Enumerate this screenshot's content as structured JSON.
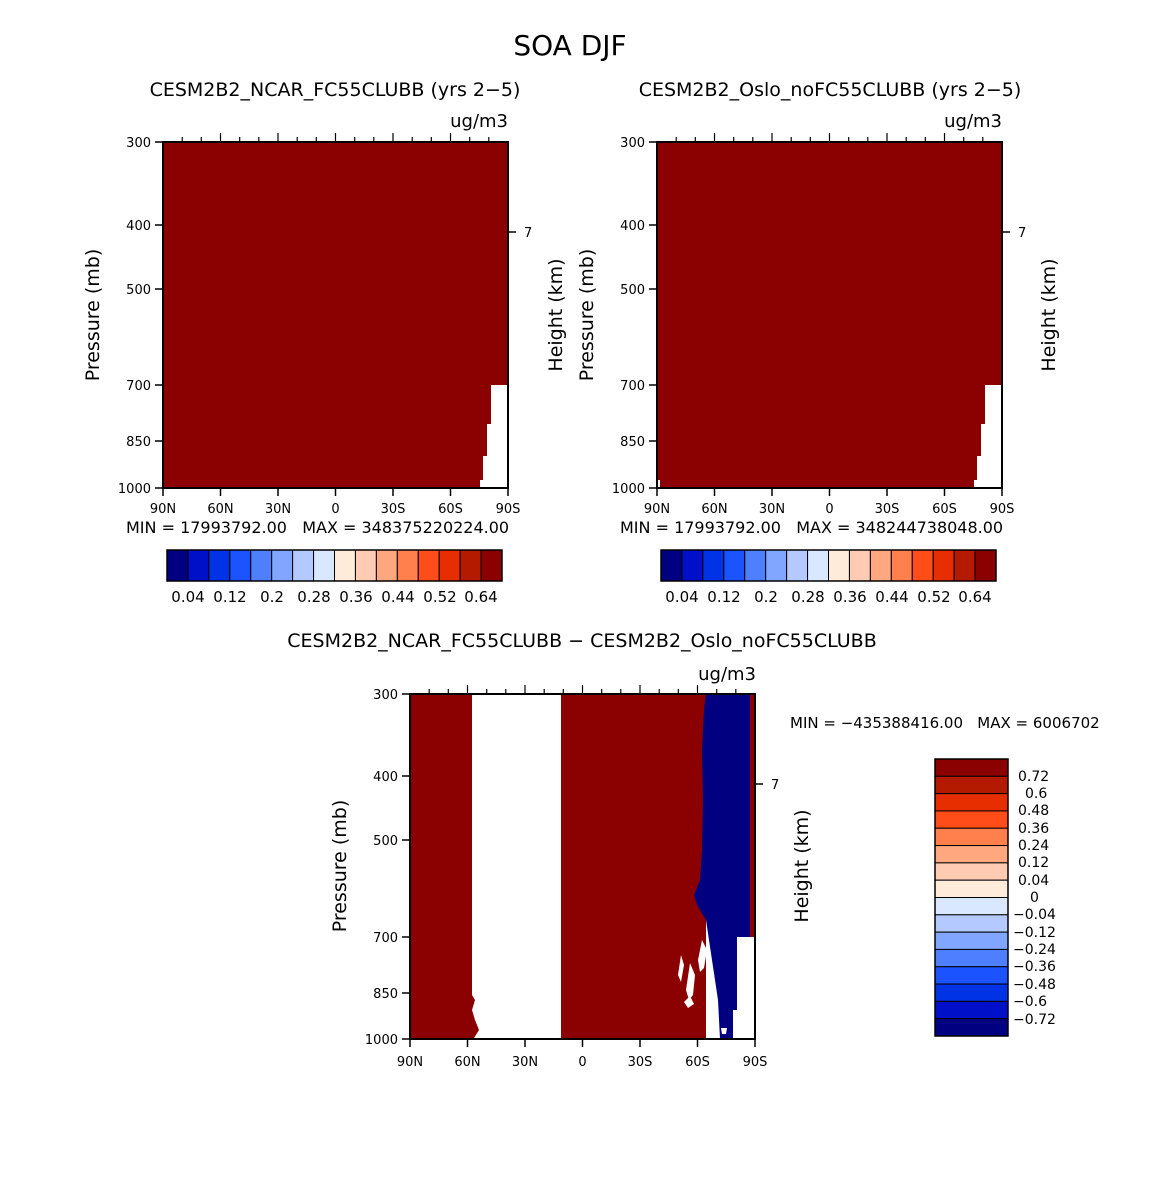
{
  "figure": {
    "title": "SOA DJF"
  },
  "chart_data": [
    {
      "id": "top-left",
      "type": "heatmap",
      "title": "CESM2B2_NCAR_FC55CLUBB (yrs 2−5)",
      "units": "ug/m3",
      "ylabel": "Pressure (mb)",
      "ylabel_right": "Height (km)",
      "xticks": [
        "90N",
        "60N",
        "30N",
        "0",
        "30S",
        "60S",
        "90S"
      ],
      "yticks": [
        300,
        400,
        500,
        700,
        850,
        1000
      ],
      "right_ticks": [
        "7"
      ],
      "stats": "MIN = 17993792.00   MAX = 348375220224.00",
      "colorbar_labels": [
        "0.04",
        "0.12",
        "0.2",
        "0.28",
        "0.36",
        "0.44",
        "0.52",
        "0.64"
      ],
      "fill": "saturated (dark red) everywhere except missing data below 700 mb near 90S"
    },
    {
      "id": "top-right",
      "type": "heatmap",
      "title": "CESM2B2_Oslo_noFC55CLUBB (yrs 2−5)",
      "units": "ug/m3",
      "ylabel": "Pressure (mb)",
      "ylabel_right": "Height (km)",
      "xticks": [
        "90N",
        "60N",
        "30N",
        "0",
        "30S",
        "60S",
        "90S"
      ],
      "yticks": [
        300,
        400,
        500,
        700,
        850,
        1000
      ],
      "right_ticks": [
        "7"
      ],
      "stats": "MIN = 17993792.00   MAX = 348244738048.00",
      "colorbar_labels": [
        "0.04",
        "0.12",
        "0.2",
        "0.28",
        "0.36",
        "0.44",
        "0.52",
        "0.64"
      ],
      "fill": "saturated (dark red) everywhere except missing data below 700 mb near 90S"
    },
    {
      "id": "bottom",
      "type": "heatmap",
      "title": "CESM2B2_NCAR_FC55CLUBB − CESM2B2_Oslo_noFC55CLUBB",
      "units": "ug/m3",
      "ylabel": "Pressure (mb)",
      "ylabel_right": "Height (km)",
      "xticks": [
        "90N",
        "60N",
        "30N",
        "0",
        "30S",
        "60S",
        "90S"
      ],
      "yticks": [
        300,
        400,
        500,
        700,
        850,
        1000
      ],
      "right_ticks": [
        "7"
      ],
      "stats": "MIN = −435388416.00   MAX = 6006702",
      "colorbar_labels": [
        "0.72",
        "0.6",
        "0.48",
        "0.36",
        "0.24",
        "0.12",
        "0.04",
        "0",
        "−0.04",
        "−0.12",
        "−0.24",
        "−0.36",
        "−0.48",
        "−0.6",
        "−0.72"
      ],
      "regions": [
        {
          "from_lat": 90,
          "to_lat": 57,
          "value": "positive saturated"
        },
        {
          "from_lat": 57,
          "to_lat": 12,
          "value": "zero"
        },
        {
          "from_lat": 12,
          "to_lat": -64,
          "value": "positive saturated"
        },
        {
          "from_lat": -64,
          "to_lat": -86,
          "value": "negative saturated"
        },
        {
          "from_lat": -86,
          "to_lat": -90,
          "value": "positive saturated"
        }
      ]
    }
  ],
  "colors": {
    "seq": [
      "#000080",
      "#0010c8",
      "#0033e6",
      "#1a53ff",
      "#4d7fff",
      "#80a6ff",
      "#b3c9ff",
      "#d9e8ff",
      "#ffebd9",
      "#ffccb3",
      "#ffa880",
      "#ff7f4d",
      "#ff4d1a",
      "#e62e00",
      "#b31a00",
      "#8b0000"
    ],
    "div": [
      "#000080",
      "#0010c8",
      "#0033e6",
      "#1a53ff",
      "#4d7fff",
      "#80a6ff",
      "#b3c9ff",
      "#d9e8ff",
      "#ffebd9",
      "#ffccb3",
      "#ffa880",
      "#ff7f4d",
      "#ff4d1a",
      "#e62e00",
      "#b31a00",
      "#8b0000"
    ],
    "max": "#8b0000",
    "min": "#000080"
  }
}
